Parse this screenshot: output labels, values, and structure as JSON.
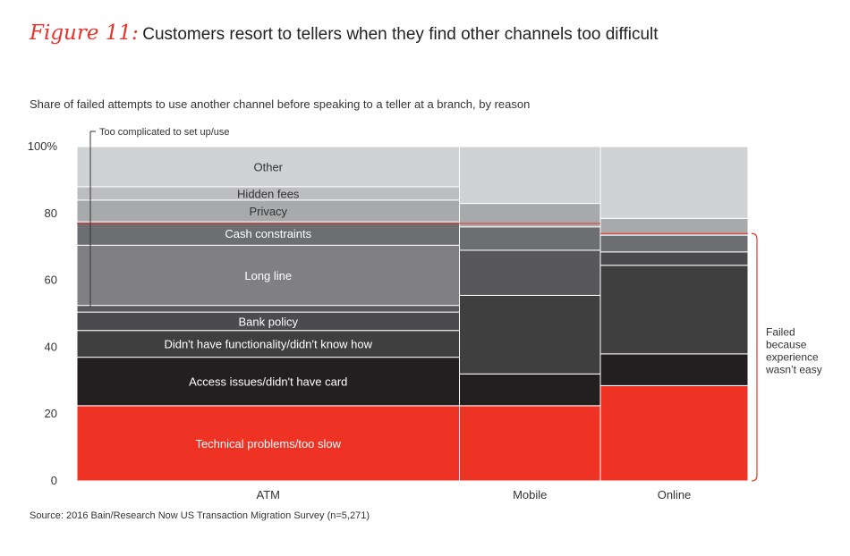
{
  "header": {
    "figure_label": "Figure 11:",
    "title": "Customers resort to tellers when they find other channels too difficult",
    "subtitle": "Share of failed attempts to use another channel before speaking to a teller at a branch, by reason"
  },
  "footer": {
    "source": "Source: 2016 Bain/Research Now US Transaction Migration Survey (n=5,271)"
  },
  "chart_data": {
    "type": "bar",
    "subtype": "marimekko (variable-width 100% stacked columns)",
    "title": "Customers resort to tellers when they find other channels too difficult",
    "ylabel": "Share of failed attempts to use another channel before speaking to a teller at a branch, by reason",
    "ylim": [
      0,
      100
    ],
    "y_ticks": [
      0,
      20,
      40,
      60,
      80,
      100
    ],
    "y_tick_labels": [
      "0",
      "20",
      "40",
      "60",
      "80",
      "100%"
    ],
    "categories": [
      "ATM",
      "Mobile",
      "Online"
    ],
    "column_share": [
      57,
      21,
      22
    ],
    "series": [
      {
        "name": "Technical problems/too slow",
        "color": "#ee3224",
        "values": [
          22.5,
          22.5,
          28.5
        ]
      },
      {
        "name": "Access issues/didn't have card",
        "color": "#231f20",
        "values": [
          14.5,
          9.5,
          9.5
        ]
      },
      {
        "name": "Didn't have functionality/didn't know how",
        "color": "#3f3f3f",
        "values": [
          8.0,
          23.5,
          26.5
        ]
      },
      {
        "name": "Bank policy",
        "color": "#4b4b4d",
        "values": [
          5.5,
          0,
          4.0
        ]
      },
      {
        "name": "Too complicated to set up/use",
        "color": "#58585a",
        "values": [
          2.0,
          13.5,
          0
        ]
      },
      {
        "name": "Long line",
        "color": "#808083",
        "values": [
          18.0,
          0,
          0
        ]
      },
      {
        "name": "Cash constraints",
        "color": "#6d6e71",
        "values": [
          7.0,
          7.0,
          5.0
        ]
      },
      {
        "name": "Privacy",
        "color": "#a8a9ab",
        "values": [
          6.5,
          7.0,
          5.0
        ]
      },
      {
        "name": "Hidden fees",
        "color": "#bcbdbf",
        "values": [
          4.0,
          0,
          0
        ]
      },
      {
        "name": "Other",
        "color": "#d1d2d4",
        "values": [
          12.0,
          17.0,
          21.5
        ]
      }
    ],
    "annotations": {
      "too_complicated_label": "Too complicated to set up/use",
      "bracket_label": "Failed because experience wasn't easy",
      "bracket_label_lines": [
        "Failed",
        "because",
        "experience",
        "wasn’t easy"
      ],
      "failed_threshold": [
        77,
        77,
        74
      ]
    },
    "colors": {
      "accent": "#e8332a",
      "separator": "#ffffff",
      "axis_text": "#333333"
    }
  }
}
